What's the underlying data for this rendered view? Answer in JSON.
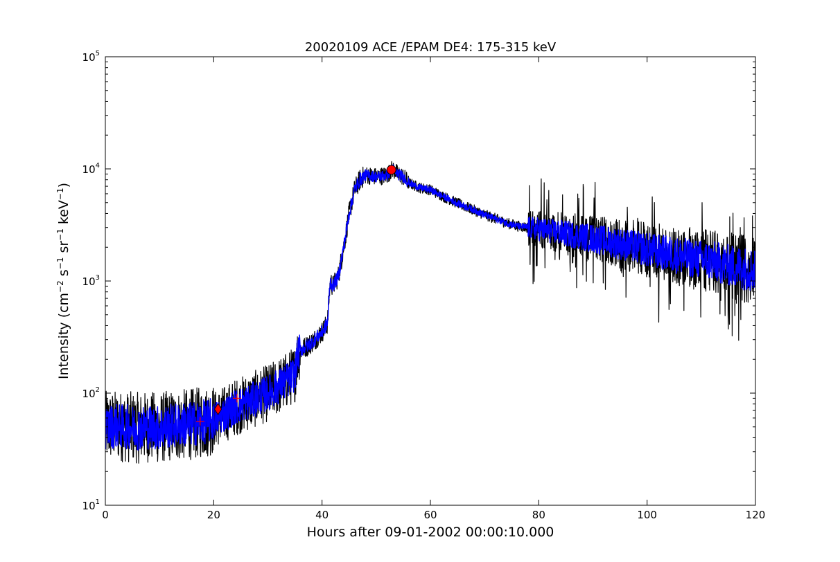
{
  "chart_data": {
    "type": "line",
    "title": "20020109 ACE /EPAM DE4: 175-315 keV",
    "xlabel": "Hours after 09-01-2002 00:00:10.000",
    "ylabel": {
      "prefix": "Intensity (cm",
      "exp1": "−2",
      "s": " s",
      "exp2": "−1",
      "sr": " sr",
      "exp3": "−1",
      "kev": " keV",
      "exp4": "−1",
      "suffix": ")"
    },
    "xlim": [
      0,
      120
    ],
    "ylim": [
      10,
      100000
    ],
    "yscale": "log",
    "xticks": [
      0,
      20,
      40,
      60,
      80,
      100,
      120
    ],
    "yticks": [
      {
        "value": 10,
        "base": "10",
        "exp": "1"
      },
      {
        "value": 100,
        "base": "10",
        "exp": "2"
      },
      {
        "value": 1000,
        "base": "10",
        "exp": "3"
      },
      {
        "value": 10000,
        "base": "10",
        "exp": "4"
      },
      {
        "value": 100000,
        "base": "10",
        "exp": "5"
      }
    ],
    "grid": false,
    "series": [
      {
        "color": "#000000",
        "x": [
          0,
          2,
          4,
          6,
          8,
          10,
          12,
          14,
          16,
          18,
          20,
          22,
          24,
          26,
          28,
          30,
          32,
          34,
          35,
          35.5,
          36,
          38,
          40,
          41,
          41.5,
          42,
          43,
          44,
          45,
          46,
          47,
          48,
          49,
          50,
          52,
          53,
          54,
          55,
          56,
          58,
          60,
          62,
          64,
          66,
          68,
          70,
          72,
          74,
          76,
          78,
          80,
          84,
          88,
          92,
          96,
          100,
          104,
          108,
          112,
          116,
          120
        ],
        "y": [
          50,
          51,
          50,
          49,
          50,
          49,
          51,
          52,
          53,
          55,
          58,
          65,
          75,
          82,
          90,
          100,
          115,
          135,
          150,
          220,
          240,
          280,
          350,
          420,
          1000,
          900,
          1100,
          2000,
          4000,
          6500,
          8000,
          8800,
          8700,
          8500,
          8800,
          10000,
          9000,
          8500,
          7500,
          6800,
          6500,
          5800,
          5200,
          4700,
          4300,
          3900,
          3600,
          3300,
          3100,
          3000,
          2900,
          2700,
          2500,
          2300,
          2100,
          1900,
          1750,
          1600,
          1500,
          1350,
          1250
        ]
      },
      {
        "color": "#0000ff",
        "x": [
          0,
          2,
          4,
          6,
          8,
          10,
          12,
          14,
          16,
          18,
          20,
          22,
          24,
          26,
          28,
          30,
          32,
          34,
          35,
          35.5,
          36,
          38,
          40,
          41,
          41.5,
          42,
          43,
          44,
          45,
          46,
          47,
          48,
          49,
          50,
          52,
          53,
          54,
          55,
          56,
          58,
          60,
          62,
          64,
          66,
          68,
          70,
          72,
          74,
          76,
          78,
          80,
          84,
          88,
          92,
          96,
          100,
          104,
          108,
          112,
          116,
          120
        ],
        "y": [
          50,
          51,
          50,
          49,
          50,
          49,
          51,
          52,
          53,
          55,
          58,
          65,
          75,
          82,
          90,
          100,
          115,
          135,
          150,
          220,
          240,
          280,
          350,
          420,
          1000,
          900,
          1100,
          2000,
          4000,
          6500,
          8000,
          8800,
          8700,
          8500,
          8800,
          10000,
          9000,
          8500,
          7500,
          6800,
          6500,
          5800,
          5200,
          4700,
          4300,
          3900,
          3600,
          3300,
          3100,
          3000,
          2900,
          2700,
          2500,
          2300,
          2100,
          1900,
          1750,
          1600,
          1500,
          1350,
          1250
        ]
      }
    ],
    "markers": [
      {
        "shape": "circle",
        "x": 52.8,
        "y": 9800,
        "color": "#ff0000"
      },
      {
        "shape": "diamond",
        "x": 20.8,
        "y": 72,
        "color": "#ff0000"
      },
      {
        "shape": "plus",
        "x": 17.5,
        "y": 56,
        "color": "#ff0000"
      },
      {
        "shape": "plus",
        "x": 24.3,
        "y": 90,
        "color": "#ff0000"
      }
    ]
  }
}
